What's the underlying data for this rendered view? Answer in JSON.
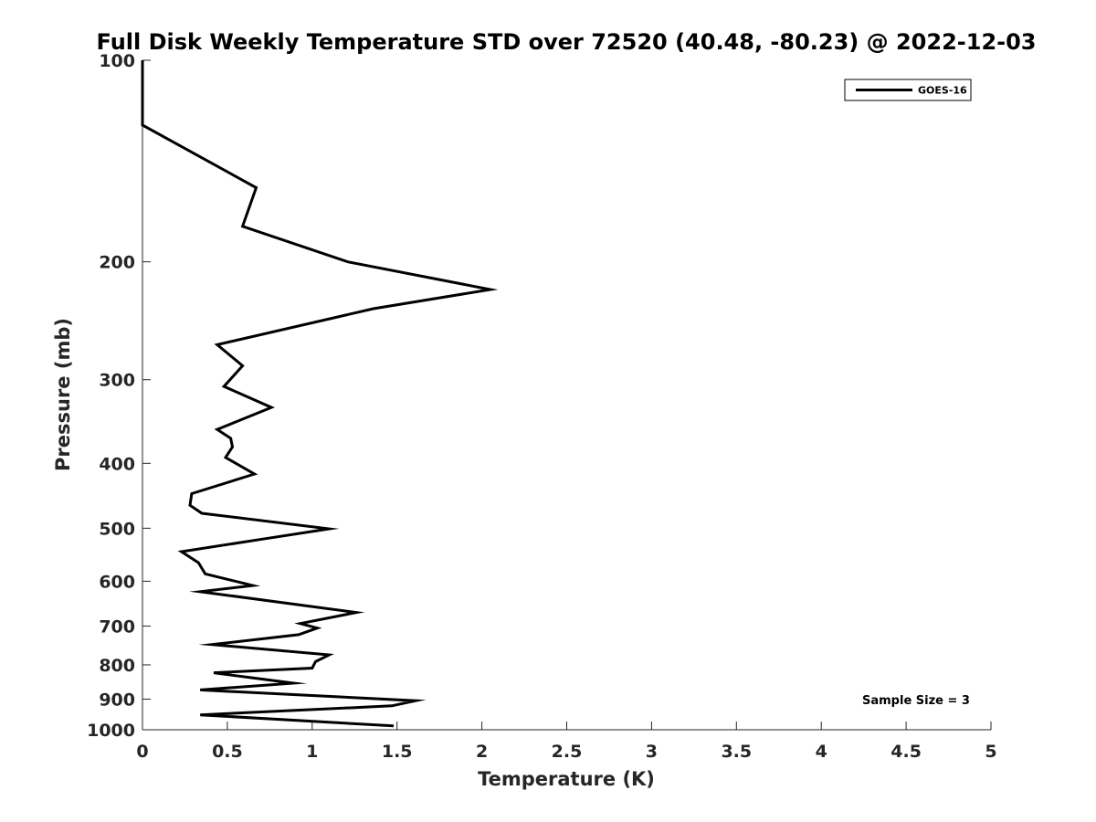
{
  "chart_data": {
    "type": "line",
    "title": "Full Disk Weekly Temperature STD over 72520 (40.48, -80.23) @ 2022-12-03",
    "xlabel": "Temperature (K)",
    "ylabel": "Pressure (mb)",
    "xlim": [
      0,
      5
    ],
    "ylim": [
      100,
      1000
    ],
    "yscale": "log",
    "y_reversed": true,
    "grid": false,
    "legend_position": "top-right",
    "xticks": [
      "0",
      "0.5",
      "1",
      "1.5",
      "2",
      "2.5",
      "3",
      "3.5",
      "4",
      "4.5",
      "5"
    ],
    "xtick_values": [
      0,
      0.5,
      1,
      1.5,
      2,
      2.5,
      3,
      3.5,
      4,
      4.5,
      5
    ],
    "yticks": [
      "100",
      "200",
      "300",
      "400",
      "500",
      "600",
      "700",
      "800",
      "900",
      "1000"
    ],
    "ytick_values": [
      100,
      200,
      300,
      400,
      500,
      600,
      700,
      800,
      900,
      1000
    ],
    "series": [
      {
        "name": "GOES-16",
        "color": "#000000",
        "points": [
          [
            0.0,
            100
          ],
          [
            0.0,
            125
          ],
          [
            0.67,
            155
          ],
          [
            0.59,
            177
          ],
          [
            1.21,
            200
          ],
          [
            2.05,
            220
          ],
          [
            1.36,
            235
          ],
          [
            0.44,
            266
          ],
          [
            0.59,
            286
          ],
          [
            0.48,
            307
          ],
          [
            0.76,
            330
          ],
          [
            0.44,
            356
          ],
          [
            0.52,
            367
          ],
          [
            0.53,
            378
          ],
          [
            0.49,
            392
          ],
          [
            0.66,
            415
          ],
          [
            0.29,
            444
          ],
          [
            0.28,
            462
          ],
          [
            0.35,
            475
          ],
          [
            1.1,
            501
          ],
          [
            0.71,
            519
          ],
          [
            0.23,
            542
          ],
          [
            0.33,
            563
          ],
          [
            0.37,
            585
          ],
          [
            0.65,
            609
          ],
          [
            0.34,
            622
          ],
          [
            1.26,
            668
          ],
          [
            0.93,
            694
          ],
          [
            1.03,
            705
          ],
          [
            0.92,
            721
          ],
          [
            0.41,
            746
          ],
          [
            1.1,
            773
          ],
          [
            1.02,
            791
          ],
          [
            1.0,
            809
          ],
          [
            0.42,
            822
          ],
          [
            0.89,
            852
          ],
          [
            0.34,
            872
          ],
          [
            1.61,
            905
          ],
          [
            1.47,
            921
          ],
          [
            0.34,
            950
          ],
          [
            1.48,
            987
          ]
        ]
      }
    ],
    "legend": [
      "GOES-16"
    ],
    "annotation": "Sample Size = 3"
  }
}
